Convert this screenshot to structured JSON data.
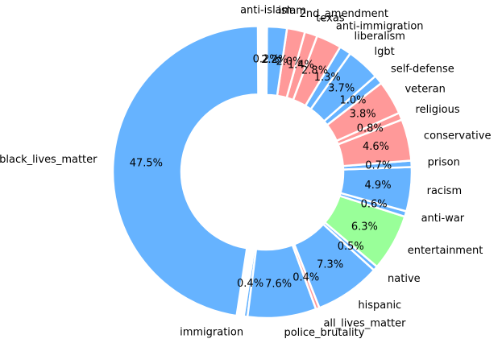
{
  "chart_data": {
    "type": "pie",
    "style": "donut",
    "title": "",
    "colors": {
      "blue": "#66b3ff",
      "red": "#ff9999",
      "green": "#99ff99"
    },
    "slices": [
      {
        "label": "black_lives_matter",
        "value": 47.5,
        "pct_label": "47.5%",
        "color": "#66b3ff",
        "exploded": true
      },
      {
        "label": "immigration",
        "value": 0.4,
        "pct_label": "0.4%",
        "color": "#66b3ff"
      },
      {
        "label": "police_brutality",
        "value": 7.6,
        "pct_label": "7.6%",
        "color": "#66b3ff"
      },
      {
        "label": "all_lives_matter",
        "value": 0.4,
        "pct_label": "0.4%",
        "color": "#ff9999"
      },
      {
        "label": "hispanic",
        "value": 7.3,
        "pct_label": "7.3%",
        "color": "#66b3ff"
      },
      {
        "label": "native",
        "value": 0.5,
        "pct_label": "0.5%",
        "color": "#66b3ff"
      },
      {
        "label": "entertainment",
        "value": 6.3,
        "pct_label": "6.3%",
        "color": "#99ff99"
      },
      {
        "label": "anti-war",
        "value": 0.6,
        "pct_label": "0.6%",
        "color": "#66b3ff"
      },
      {
        "label": "racism",
        "value": 4.9,
        "pct_label": "4.9%",
        "color": "#66b3ff"
      },
      {
        "label": "prison",
        "value": 0.7,
        "pct_label": "0.7%",
        "color": "#66b3ff"
      },
      {
        "label": "conservative",
        "value": 4.6,
        "pct_label": "4.6%",
        "color": "#ff9999"
      },
      {
        "label": "religious",
        "value": 0.8,
        "pct_label": "0.8%",
        "color": "#ff9999"
      },
      {
        "label": "veteran",
        "value": 3.8,
        "pct_label": "3.8%",
        "color": "#ff9999"
      },
      {
        "label": "self-defense",
        "value": 1.0,
        "pct_label": "1.0%",
        "color": "#66b3ff"
      },
      {
        "label": "lgbt",
        "value": 3.7,
        "pct_label": "3.7%",
        "color": "#66b3ff"
      },
      {
        "label": "liberalism",
        "value": 1.3,
        "pct_label": "1.3%",
        "color": "#66b3ff"
      },
      {
        "label": "anti-immigration",
        "value": 2.8,
        "pct_label": "2.8%",
        "color": "#ff9999"
      },
      {
        "label": "texas",
        "value": 1.4,
        "pct_label": "1.4%",
        "color": "#ff9999"
      },
      {
        "label": "2nd_amendment",
        "value": 2.0,
        "pct_label": "2.0%",
        "color": "#ff9999"
      },
      {
        "label": "islam",
        "value": 2.2,
        "pct_label": "2.2%",
        "color": "#66b3ff"
      },
      {
        "label": "anti-islam",
        "value": 0.2,
        "pct_label": "0.2%",
        "color": "#ff9999"
      }
    ]
  }
}
